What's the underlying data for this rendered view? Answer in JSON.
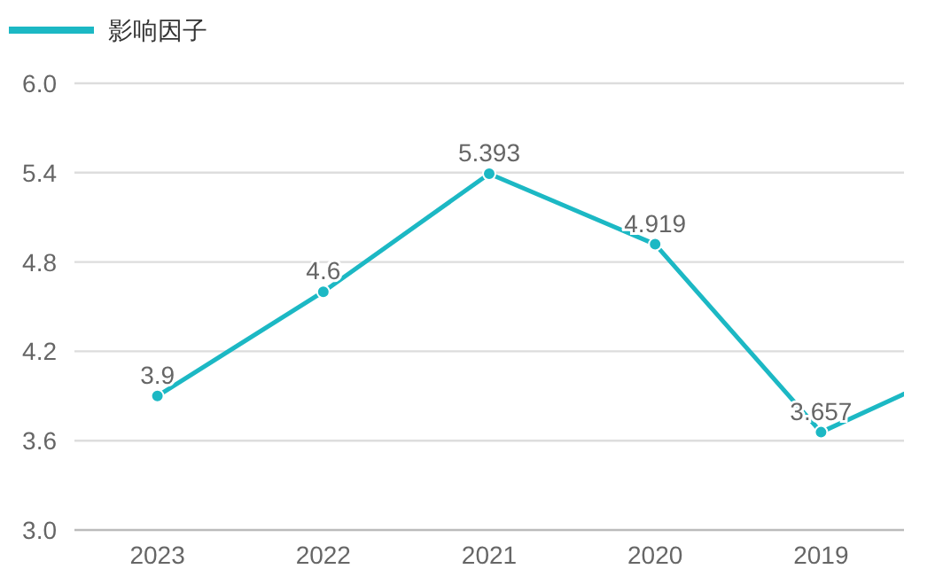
{
  "chart_data": {
    "type": "line",
    "categories": [
      "2023",
      "2022",
      "2021",
      "2020",
      "2019",
      null
    ],
    "series": [
      {
        "name": "影响因子",
        "color": "#1cb8c4",
        "values": [
          3.9,
          4.6,
          5.393,
          4.919,
          3.657,
          4.17
        ],
        "value_labels": [
          "3.9",
          "4.6",
          "5.393",
          "4.919",
          "3.657",
          null
        ]
      }
    ],
    "ylim": [
      3.0,
      6.0
    ],
    "yticks": [
      "3.0",
      "3.6",
      "4.2",
      "4.8",
      "5.4",
      "6.0"
    ],
    "grid": "y",
    "legend": "top left",
    "marker": "circle",
    "line_style": "solid"
  }
}
